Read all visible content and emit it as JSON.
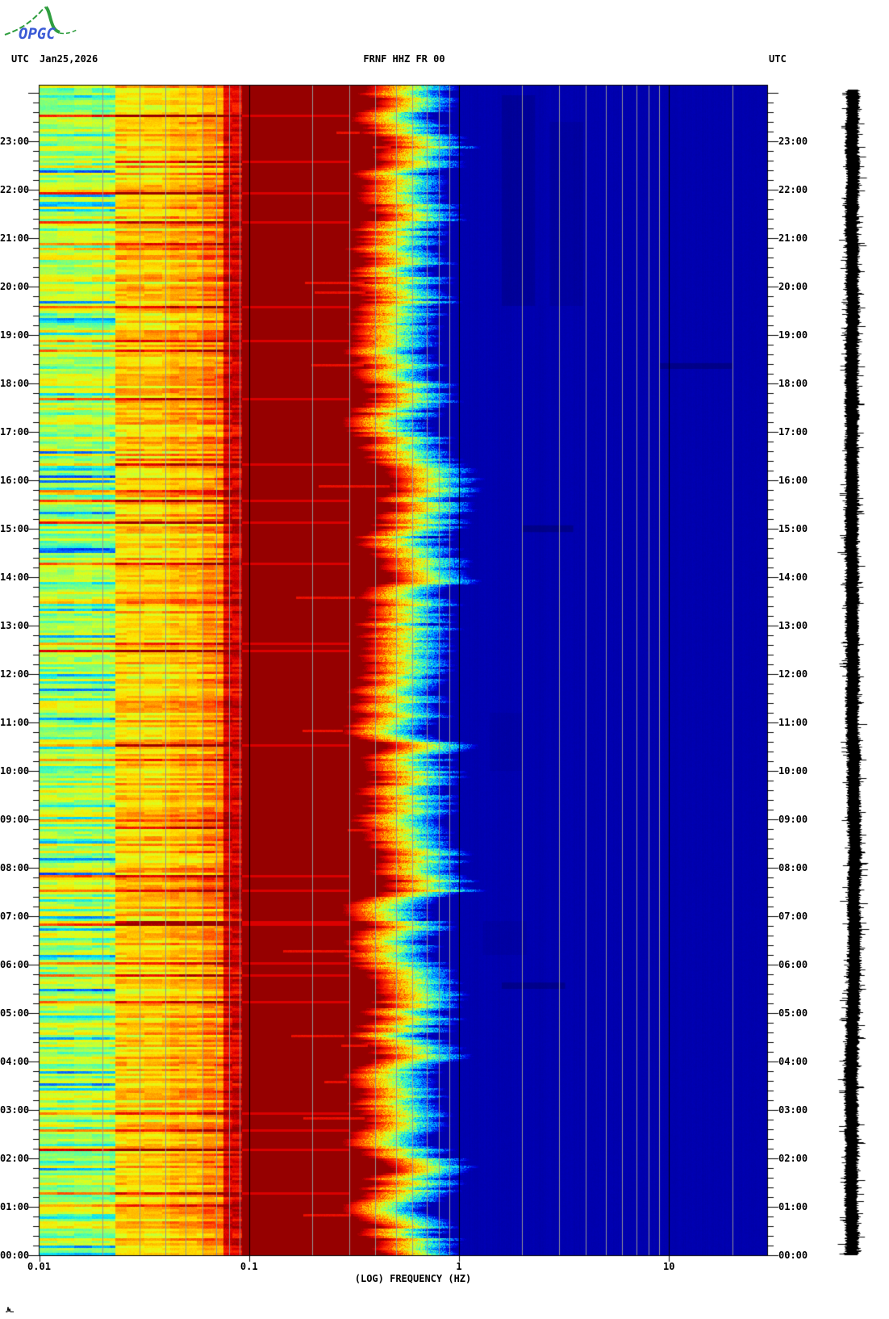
{
  "logo": {
    "text": "OPGC",
    "text_color": "#3b5bd6",
    "curve_color": "#2f9e3f"
  },
  "header": {
    "utc_left": "UTC",
    "date": "Jan25,2026",
    "title": "FRNF HHZ FR 00",
    "utc_right": "UTC"
  },
  "chart_data": {
    "type": "heatmap",
    "subtype": "seismic-spectrogram",
    "title": "FRNF HHZ FR 00",
    "station": {
      "station": "FRNF",
      "channel": "HHZ",
      "network": "FR",
      "location": "00"
    },
    "date": "Jan25,2026",
    "xlabel": "(LOG) FREQUENCY (HZ)",
    "x_scale": "log",
    "x_range_hz": [
      0.01,
      29.5
    ],
    "x_tick_values": [
      0.01,
      0.1,
      1,
      10
    ],
    "x_tick_labels": [
      "0.01",
      "0.1",
      "1",
      "10"
    ],
    "minor_gridlines_hz": [
      0.02,
      0.03,
      0.04,
      0.05,
      0.06,
      0.07,
      0.08,
      0.09,
      0.2,
      0.3,
      0.4,
      0.5,
      0.6,
      0.7,
      0.8,
      0.9,
      2,
      3,
      4,
      5,
      6,
      7,
      8,
      9,
      20
    ],
    "major_gridlines_hz": [
      0.1,
      1,
      10
    ],
    "y_axis_unit": "UTC",
    "hour_labels_top_to_bottom": [
      "23:00",
      "22:00",
      "21:00",
      "20:00",
      "19:00",
      "18:00",
      "17:00",
      "16:00",
      "15:00",
      "14:00",
      "13:00",
      "12:00",
      "11:00",
      "10:00",
      "09:00",
      "08:00",
      "07:00",
      "06:00",
      "05:00",
      "04:00",
      "03:00",
      "02:00",
      "01:00",
      "00:00"
    ],
    "minor_ticks_per_hour": 5,
    "palette_low_to_high": [
      "#0000a0",
      "#0000d7",
      "#0046ff",
      "#0096ff",
      "#00dcff",
      "#46ffb4",
      "#96ff64",
      "#dcff1e",
      "#ffe100",
      "#ffaf00",
      "#ff7300",
      "#ff2d00",
      "#e10000",
      "#960000"
    ],
    "bands": [
      {
        "f_lo_hz": 0.01,
        "f_hi_hz": 0.023,
        "level": 0.5,
        "appearance": "mottled green/yellow, cyan dips, orange streak lines"
      },
      {
        "f_lo_hz": 0.023,
        "f_hi_hz": 0.042,
        "level": 0.64,
        "appearance": "yellow-orange horizontal striping"
      },
      {
        "f_lo_hz": 0.042,
        "f_hi_hz": 0.06,
        "level": 0.68,
        "appearance": "yellow-orange with red rows"
      },
      {
        "f_lo_hz": 0.06,
        "f_hi_hz": 0.075,
        "level": 0.74,
        "appearance": "orange-red striping"
      },
      {
        "f_lo_hz": 0.075,
        "f_hi_hz": 0.092,
        "level": 0.93,
        "appearance": "dark red with bright red/orange rows"
      },
      {
        "f_lo_hz": 0.092,
        "f_hi_hz": 0.35,
        "level": 1.0,
        "appearance": "saturated dark red (maximum power)"
      },
      {
        "f_lo_hz": 0.35,
        "f_hi_hz": 1.2,
        "level": "decaying",
        "appearance": "jagged rainbow edge red-yellow-cyan-blue"
      },
      {
        "f_lo_hz": 1.2,
        "f_hi_hz": 29.5,
        "level": 0.02,
        "appearance": "quiet uniform dark navy blue"
      }
    ],
    "transition": {
      "edge_hz": 0.35,
      "decay_decades": 0.42
    },
    "dark_features": [
      {
        "hz": [
          1.6,
          2.3
        ],
        "utc": [
          19.6,
          23.95
        ],
        "alpha": 0.16
      },
      {
        "hz": [
          2.7,
          3.9
        ],
        "utc": [
          19.6,
          23.4
        ],
        "alpha": 0.1
      },
      {
        "hz": [
          1.4,
          2.0
        ],
        "utc": [
          10.0,
          11.2
        ],
        "alpha": 0.07
      },
      {
        "hz": [
          2.0,
          3.5
        ],
        "utc": [
          14.93,
          15.07
        ],
        "alpha": 0.28
      },
      {
        "hz": [
          9.0,
          20.0
        ],
        "utc": [
          18.3,
          18.42
        ],
        "alpha": 0.28
      },
      {
        "hz": [
          1.6,
          3.2
        ],
        "utc": [
          5.5,
          5.63
        ],
        "alpha": 0.26
      },
      {
        "hz": [
          1.3,
          2.1
        ],
        "utc": [
          6.2,
          6.9
        ],
        "alpha": 0.08
      }
    ],
    "gridline_minor_color": "#969696",
    "gridline_major_color": "#000000",
    "side_trace": {
      "kind": "seismogram-amplitude",
      "color": "#000000"
    }
  }
}
